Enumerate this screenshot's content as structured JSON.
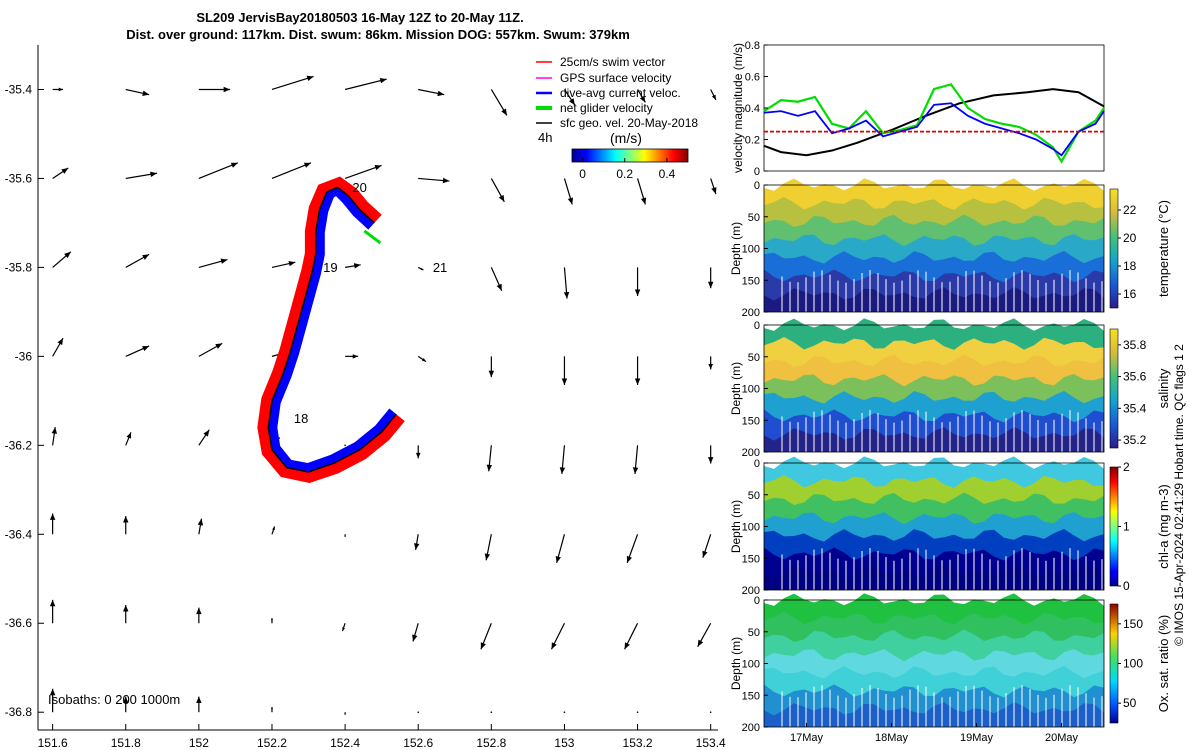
{
  "figure": {
    "title": "SL209 JervisBay20180503 16-May 12Z to 20-May 11Z.",
    "subtitle": "Dist. over ground: 117km. Dist. swum: 86km. Mission DOG: 557km. Swum: 379km",
    "credit": "© IMOS 15-Apr-2024 02:41:29 Hobart time. QC flags 1  2"
  },
  "colors": {
    "swim_vector": "#ff0000",
    "gps_velocity": "#ff00ff",
    "dive_avg": "#0000ff",
    "net_glider": "#00dd00",
    "sfc_geo": "#000000"
  },
  "chart_data": [
    {
      "id": "map",
      "type": "scatter",
      "x_ticks": [
        "151.6",
        "151.8",
        "152",
        "152.2",
        "152.4",
        "152.6",
        "152.8",
        "153",
        "153.2",
        "153.4"
      ],
      "y_ticks": [
        "-35.4",
        "-35.6",
        "-35.8",
        "-36",
        "-36.2",
        "-36.4",
        "-36.6",
        "-36.8"
      ],
      "xlim": [
        151.56,
        153.42
      ],
      "ylim": [
        -36.84,
        -35.3
      ],
      "legend": [
        {
          "label": "25cm/s swim vector",
          "color": "#ff0000"
        },
        {
          "label": "GPS surface velocity",
          "color": "#ff00ff"
        },
        {
          "label": "dive-avg current veloc.",
          "color": "#0000ff"
        },
        {
          "label": "net glider velocity",
          "color": "#00dd00"
        },
        {
          "label": "sfc geo. vel. 20-May-2018",
          "color": "#000000"
        }
      ],
      "colorbar": {
        "tag": "4h",
        "label": "(m/s)",
        "ticks": [
          "0",
          "0.2",
          "0.4"
        ],
        "range": [
          -0.05,
          0.5
        ]
      },
      "isobaths_label": "Isobaths: 0   200  1000m",
      "day_labels": [
        {
          "text": "18",
          "lon": 152.26,
          "lat": -36.15
        },
        {
          "text": "19",
          "lon": 152.34,
          "lat": -35.81
        },
        {
          "text": "20",
          "lon": 152.42,
          "lat": -35.63
        },
        {
          "text": "21",
          "lon": 152.64,
          "lat": -35.81
        }
      ],
      "track": [
        [
          152.48,
          -35.7
        ],
        [
          152.44,
          -35.67
        ],
        [
          152.41,
          -35.64
        ],
        [
          152.38,
          -35.62
        ],
        [
          152.35,
          -35.63
        ],
        [
          152.33,
          -35.67
        ],
        [
          152.32,
          -35.72
        ],
        [
          152.32,
          -35.77
        ],
        [
          152.31,
          -35.81
        ],
        [
          152.29,
          -35.87
        ],
        [
          152.27,
          -35.93
        ],
        [
          152.25,
          -35.99
        ],
        [
          152.23,
          -36.04
        ],
        [
          152.2,
          -36.1
        ],
        [
          152.19,
          -36.16
        ],
        [
          152.2,
          -36.21
        ],
        [
          152.24,
          -36.25
        ],
        [
          152.3,
          -36.26
        ],
        [
          152.37,
          -36.24
        ],
        [
          152.44,
          -36.21
        ],
        [
          152.5,
          -36.17
        ],
        [
          152.54,
          -36.13
        ]
      ],
      "vector_field": {
        "lons": [
          151.6,
          151.8,
          152.0,
          152.2,
          152.4,
          152.6,
          152.8,
          153.0,
          153.2,
          153.4
        ],
        "lats": [
          -35.4,
          -35.6,
          -35.8,
          -36.0,
          -36.2,
          -36.4,
          -36.6,
          -36.8
        ],
        "u": [
          [
            0.04,
            0.09,
            0.12,
            0.16,
            0.16,
            0.1,
            0.06,
            0.04,
            0.03,
            0.02
          ],
          [
            0.06,
            0.12,
            0.15,
            0.15,
            0.14,
            0.12,
            0.05,
            0.03,
            0.03,
            0.02
          ],
          [
            0.07,
            0.09,
            0.11,
            0.09,
            0.06,
            0.02,
            0.04,
            0.01,
            0.0,
            0.0
          ],
          [
            0.04,
            0.09,
            0.09,
            0.07,
            0.05,
            0.03,
            0.0,
            0.0,
            0.0,
            0.0
          ],
          [
            0.01,
            0.02,
            0.04,
            0.03,
            0.0,
            0.0,
            -0.01,
            -0.01,
            -0.01,
            0.0
          ],
          [
            0.0,
            0.0,
            0.01,
            0.01,
            0.0,
            -0.01,
            -0.02,
            -0.03,
            -0.04,
            -0.03
          ],
          [
            0.0,
            0.0,
            0.0,
            0.0,
            -0.01,
            -0.02,
            -0.04,
            -0.05,
            -0.05,
            -0.05
          ],
          [
            0.0,
            0.0,
            0.0,
            0.0,
            0.0,
            0.0,
            0.0,
            0.0,
            0.0,
            0.0
          ]
        ],
        "v": [
          [
            0.0,
            -0.02,
            0.0,
            0.05,
            0.04,
            -0.02,
            -0.1,
            -0.06,
            -0.05,
            -0.04
          ],
          [
            0.04,
            0.02,
            0.06,
            0.06,
            0.05,
            -0.01,
            -0.09,
            -0.1,
            -0.1,
            -0.06
          ],
          [
            0.06,
            0.05,
            0.03,
            0.02,
            0.01,
            -0.01,
            -0.09,
            -0.12,
            -0.11,
            -0.08
          ],
          [
            0.07,
            0.04,
            0.05,
            0.02,
            0.0,
            -0.02,
            -0.08,
            -0.11,
            -0.11,
            -0.05
          ],
          [
            0.07,
            0.05,
            0.06,
            0.03,
            0.0,
            -0.05,
            -0.1,
            -0.11,
            -0.11,
            -0.07
          ],
          [
            0.08,
            0.07,
            0.06,
            0.03,
            -0.01,
            -0.06,
            -0.1,
            -0.11,
            -0.11,
            -0.09
          ],
          [
            0.09,
            0.07,
            0.06,
            0.02,
            -0.03,
            -0.07,
            -0.1,
            -0.1,
            -0.1,
            -0.09
          ],
          [
            0.09,
            0.06,
            0.06,
            0.02,
            -0.01,
            0.0,
            0.0,
            0.0,
            0.0,
            0.0
          ]
        ]
      }
    },
    {
      "id": "velocity",
      "type": "line",
      "ylabel": "velocity magnitude (m/s)",
      "ylim": [
        0,
        0.8
      ],
      "y_ticks": [
        "0",
        "0.2",
        "0.4",
        "0.6",
        "0.8"
      ],
      "x_range_days": [
        16.5,
        20.5
      ],
      "series": [
        {
          "color": "#000000",
          "x": [
            16.5,
            16.7,
            17.0,
            17.3,
            17.6,
            18.0,
            18.4,
            18.8,
            19.2,
            19.6,
            19.9,
            20.2,
            20.5
          ],
          "y": [
            0.16,
            0.12,
            0.1,
            0.13,
            0.18,
            0.26,
            0.35,
            0.43,
            0.48,
            0.5,
            0.52,
            0.5,
            0.41
          ]
        },
        {
          "color": "#00dd00",
          "x": [
            16.5,
            16.7,
            16.9,
            17.1,
            17.3,
            17.5,
            17.7,
            17.9,
            18.1,
            18.3,
            18.5,
            18.7,
            18.9,
            19.1,
            19.3,
            19.5,
            19.7,
            19.9,
            20.0,
            20.2,
            20.4,
            20.5
          ],
          "y": [
            0.38,
            0.45,
            0.44,
            0.47,
            0.3,
            0.27,
            0.38,
            0.24,
            0.26,
            0.29,
            0.52,
            0.55,
            0.4,
            0.33,
            0.3,
            0.28,
            0.23,
            0.15,
            0.06,
            0.25,
            0.32,
            0.4
          ]
        },
        {
          "color": "#0000ff",
          "x": [
            16.5,
            16.7,
            16.9,
            17.1,
            17.3,
            17.5,
            17.7,
            17.9,
            18.1,
            18.3,
            18.5,
            18.7,
            18.9,
            19.1,
            19.3,
            19.5,
            19.7,
            19.9,
            20.0,
            20.2,
            20.4,
            20.5
          ],
          "y": [
            0.37,
            0.38,
            0.35,
            0.38,
            0.24,
            0.27,
            0.32,
            0.22,
            0.25,
            0.28,
            0.42,
            0.43,
            0.35,
            0.3,
            0.27,
            0.24,
            0.2,
            0.14,
            0.1,
            0.25,
            0.3,
            0.38
          ]
        },
        {
          "color": "#dd0000",
          "x": [
            16.5,
            20.5
          ],
          "y": [
            0.25,
            0.25
          ]
        }
      ]
    },
    {
      "id": "temperature",
      "type": "heatmap",
      "ylabel": "Depth (m)",
      "colorbar_label": "temperature (°C)",
      "colorbar_ticks": [
        "16",
        "18",
        "20",
        "22"
      ],
      "crange": [
        15,
        23.5
      ],
      "y_ticks": [
        "0",
        "50",
        "100",
        "150",
        "200"
      ],
      "x_ticks": []
    },
    {
      "id": "salinity",
      "type": "heatmap",
      "ylabel": "Depth (m)",
      "colorbar_label": "salinity",
      "colorbar_ticks": [
        "35.2",
        "35.4",
        "35.6",
        "35.8"
      ],
      "crange": [
        35.15,
        35.9
      ],
      "y_ticks": [
        "0",
        "50",
        "100",
        "150",
        "200"
      ],
      "x_ticks": []
    },
    {
      "id": "chla",
      "type": "heatmap",
      "ylabel": "Depth (m)",
      "colorbar_label": "chl-a (mg m-3)",
      "colorbar_ticks": [
        "0",
        "1",
        "2"
      ],
      "crange": [
        0,
        2
      ],
      "y_ticks": [
        "0",
        "50",
        "100",
        "150",
        "200"
      ],
      "x_ticks": []
    },
    {
      "id": "oxygen",
      "type": "heatmap",
      "ylabel": "Depth (m)",
      "colorbar_label": "Ox. sat. ratio (%)",
      "colorbar_ticks": [
        "50",
        "100",
        "150"
      ],
      "crange": [
        25,
        175
      ],
      "y_ticks": [
        "0",
        "50",
        "100",
        "150",
        "200"
      ],
      "x_ticks": [
        "17May",
        "18May",
        "19May",
        "20May"
      ]
    }
  ]
}
